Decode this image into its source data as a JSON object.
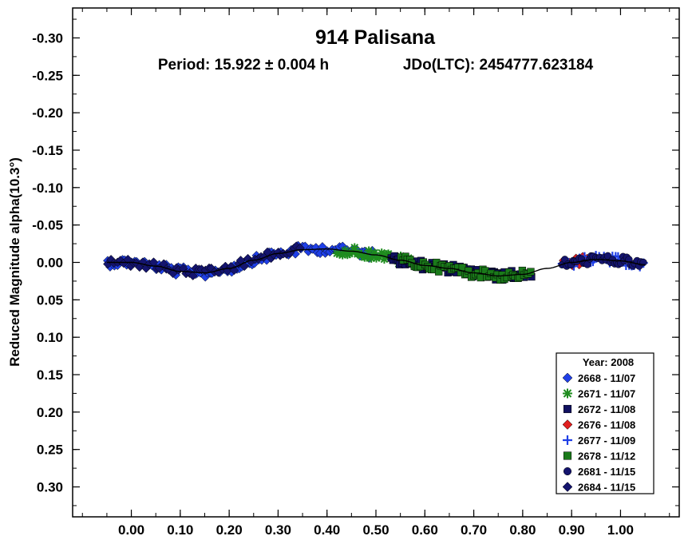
{
  "chart_data": {
    "type": "scatter",
    "title": "914 Palisana",
    "subtitle_period": "Period: 15.922 ± 0.004 h",
    "subtitle_epoch": "JDo(LTC): 2454777.623184",
    "ylabel": "Reduced Magnitude alpha(10.3°)",
    "xlabel": "",
    "xlim": [
      -0.12,
      1.12
    ],
    "ylim": [
      -0.34,
      0.34
    ],
    "y_inverted": true,
    "x_ticks": [
      "0.00",
      "0.10",
      "0.20",
      "0.30",
      "0.40",
      "0.50",
      "0.60",
      "0.70",
      "0.80",
      "0.90",
      "1.00"
    ],
    "y_ticks": [
      "-0.30",
      "-0.25",
      "-0.20",
      "-0.15",
      "-0.10",
      "-0.05",
      "0.00",
      "0.05",
      "0.10",
      "0.15",
      "0.20",
      "0.25",
      "0.30"
    ],
    "legend": {
      "title": "Year: 2008",
      "position": "bottom-right",
      "entries": [
        "2668 - 11/07",
        "2671 - 11/07",
        "2672 - 11/08",
        "2676 - 11/08",
        "2677 - 11/09",
        "2678 - 11/12",
        "2681 - 11/15",
        "2684 - 11/15"
      ]
    },
    "series": [
      {
        "name": "2668 - 11/07",
        "marker": "diamond",
        "color": "#1f3fe6",
        "x_range": [
          -0.05,
          0.5
        ],
        "count": 110
      },
      {
        "name": "2671 - 11/07",
        "marker": "asterisk",
        "color": "#1e8c1e",
        "x_range": [
          0.42,
          0.57
        ],
        "count": 30
      },
      {
        "name": "2672 - 11/08",
        "marker": "square",
        "color": "#101060",
        "x_range": [
          0.53,
          0.82
        ],
        "count": 80
      },
      {
        "name": "2676 - 11/08",
        "marker": "diamond",
        "color": "#e02020",
        "x_range": [
          0.88,
          0.95
        ],
        "count": 10
      },
      {
        "name": "2677 - 11/09",
        "marker": "plus",
        "color": "#1f3fe6",
        "x_range": [
          0.88,
          1.05
        ],
        "count": 30
      },
      {
        "name": "2678 - 11/12",
        "marker": "square",
        "color": "#1a7a1a",
        "x_range": [
          0.55,
          0.82
        ],
        "count": 60
      },
      {
        "name": "2681 - 11/15",
        "marker": "circle",
        "color": "#14146e",
        "x_range": [
          0.88,
          1.05
        ],
        "count": 40
      },
      {
        "name": "2684 - 11/15",
        "marker": "diamond",
        "color": "#14146e",
        "x_range": [
          -0.05,
          0.35
        ],
        "count": 60
      }
    ],
    "fit_curve": {
      "color": "#000000",
      "points": [
        [
          -0.05,
          0.0
        ],
        [
          0.0,
          0.0
        ],
        [
          0.05,
          0.005
        ],
        [
          0.1,
          0.012
        ],
        [
          0.15,
          0.014
        ],
        [
          0.2,
          0.008
        ],
        [
          0.25,
          -0.003
        ],
        [
          0.3,
          -0.012
        ],
        [
          0.35,
          -0.017
        ],
        [
          0.4,
          -0.018
        ],
        [
          0.45,
          -0.015
        ],
        [
          0.5,
          -0.01
        ],
        [
          0.55,
          -0.003
        ],
        [
          0.6,
          0.004
        ],
        [
          0.65,
          0.008
        ],
        [
          0.7,
          0.014
        ],
        [
          0.75,
          0.018
        ],
        [
          0.8,
          0.016
        ],
        [
          0.85,
          0.008
        ],
        [
          0.9,
          0.0
        ],
        [
          0.95,
          -0.004
        ],
        [
          1.0,
          -0.002
        ],
        [
          1.05,
          0.003
        ]
      ]
    },
    "grid": false
  }
}
